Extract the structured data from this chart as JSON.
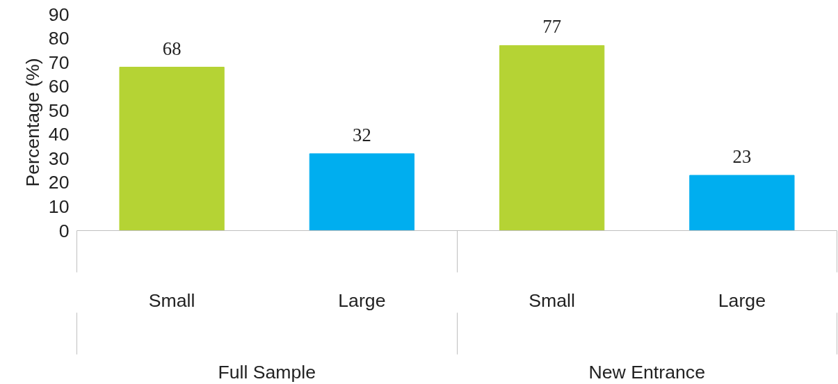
{
  "chart_data": {
    "type": "bar",
    "ylabel": "Percentage (%)",
    "categories": [
      "Small",
      "Large",
      "Small",
      "Large"
    ],
    "values": [
      68,
      32,
      77,
      23
    ],
    "colors": [
      "#b5d334",
      "#00aeef",
      "#b5d334",
      "#00aeef"
    ],
    "annotations": [
      "Full Sample",
      "New Entrance"
    ],
    "ylim": [
      0,
      90
    ],
    "yticks": [
      0,
      10,
      20,
      30,
      40,
      50,
      60,
      70,
      80,
      90
    ],
    "data_labels": true
  }
}
